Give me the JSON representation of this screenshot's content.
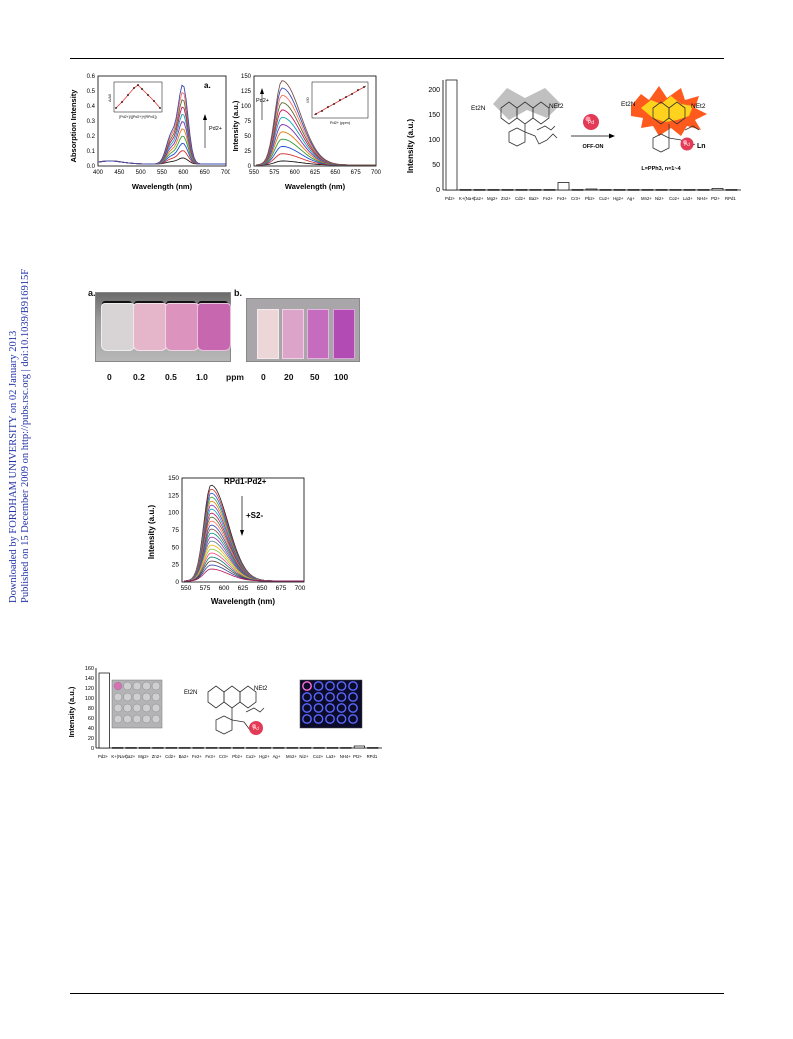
{
  "header_rule": true,
  "side_banner": {
    "downloaded": "Downloaded by FORDHAM UNIVERSITY on 02 January 2013",
    "published": "Published on 15 December 2009 on http://pubs.rsc.org | doi:10.1039/B916915F"
  },
  "fig1": {
    "panel_a": {
      "label": "a.",
      "xlabel": "Wavelength (nm)",
      "ylabel": "Absorption Intensity",
      "xticks": [
        "400",
        "450",
        "500",
        "550",
        "600",
        "650",
        "700"
      ],
      "yticks": [
        "0.0",
        "0.1",
        "0.2",
        "0.3",
        "0.4",
        "0.5",
        "0.6"
      ],
      "arrow_label": "Pd2+",
      "inset_xlabel": "[Pd2+]/([Pd2+]+[RPd1])",
      "inset_ylabel": "A/A0"
    },
    "panel_b": {
      "label": "b.",
      "xlabel": "Wavelength (nm)",
      "ylabel": "Intensity (a.u.)",
      "xticks": [
        "550",
        "575",
        "600",
        "625",
        "650",
        "675",
        "700"
      ],
      "yticks": [
        "0",
        "25",
        "50",
        "75",
        "100",
        "125",
        "150"
      ],
      "arrow_label": "Pd2+",
      "inset_xlabel": "Pd2+ (ppm)",
      "inset_ylabel": "I/I0"
    }
  },
  "fig2": {
    "ylabel": "Intensity (a.u.)",
    "yticks": [
      "0",
      "50",
      "100",
      "150",
      "200"
    ],
    "ions": [
      "Pd2+",
      "K+(Na+)",
      "Ca2+",
      "Mg2+",
      "Zn2+",
      "Cd2+",
      "Ba2+",
      "Fe2+",
      "Fe3+",
      "Cr3+",
      "Pb2+",
      "Cu2+",
      "Hg2+",
      "Ag+",
      "Mn2+",
      "Ni2+",
      "Co2+",
      "La3+",
      "NH4+",
      "Pt2+",
      "RPd1"
    ],
    "scheme_off_on": "OFF-ON",
    "scheme_ligand": "L=PPh3, n=1~4",
    "scheme_ln": "Ln",
    "scheme_pd": "Pd",
    "scheme_et2n": "Et2N",
    "scheme_net2": "NEt2"
  },
  "fig3": {
    "panel_a_label": "a.",
    "panel_b_label": "b.",
    "vial_labels": [
      "0",
      "0.2",
      "0.5",
      "1.0"
    ],
    "unit": "ppm",
    "strip_labels": [
      "0",
      "20",
      "50",
      "100"
    ],
    "colors": {
      "vial_colors": [
        "#d8d4d6",
        "#e5b6ca",
        "#dc93bd",
        "#c767b0"
      ],
      "strip_colors": [
        "#ecd6d8",
        "#dba4c8",
        "#c66cbf",
        "#b24bb3"
      ]
    }
  },
  "fig4": {
    "label_top": "RPd1-Pd2+",
    "label_arrow": "+S2-",
    "xlabel": "Wavelength (nm)",
    "ylabel": "Intensity (a.u.)",
    "xticks": [
      "550",
      "575",
      "600",
      "625",
      "650",
      "675",
      "700"
    ],
    "yticks": [
      "0",
      "25",
      "50",
      "75",
      "100",
      "125",
      "150"
    ]
  },
  "fig5": {
    "ylabel": "Intensity (a.u.)",
    "yticks": [
      "0",
      "20",
      "40",
      "60",
      "80",
      "100",
      "120",
      "140",
      "160"
    ],
    "ions": [
      "Pd2+",
      "K+(Na+)",
      "Ca2+",
      "Mg2+",
      "Zn2+",
      "Cd2+",
      "Ba2+",
      "Fe2+",
      "Fe3+",
      "Cr3+",
      "Pb2+",
      "Cu2+",
      "Hg2+",
      "Ag+",
      "Mn2+",
      "Ni2+",
      "Co2+",
      "La3+",
      "NH4+",
      "Pt2+",
      "RPd1"
    ],
    "scheme_et2n": "Et2N",
    "scheme_net2": "NEt2",
    "scheme_pd": "Pd"
  },
  "footer_rule": true
}
